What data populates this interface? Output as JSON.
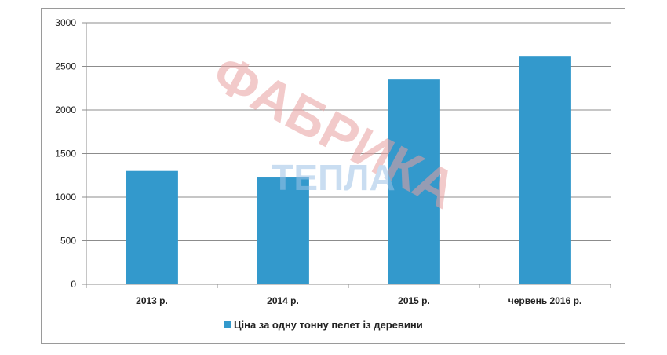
{
  "chart_data": {
    "type": "bar",
    "categories": [
      "2013 р.",
      "2014 р.",
      "2015 р.",
      "червень 2016 р."
    ],
    "series": [
      {
        "name": "Ціна за одну тонну пелет із деревини",
        "values": [
          1300,
          1225,
          2350,
          2620
        ],
        "color": "#3399cc"
      }
    ],
    "ylim": [
      0,
      3000
    ],
    "yticks": [
      0,
      500,
      1000,
      1500,
      2000,
      2500,
      3000
    ],
    "grid": true,
    "legend_position": "bottom"
  },
  "watermark": {
    "line1": "ФАБРИКА",
    "line2": "ТЕПЛА",
    "color1": "#e8a0a0",
    "color2": "#9ec3e6"
  }
}
